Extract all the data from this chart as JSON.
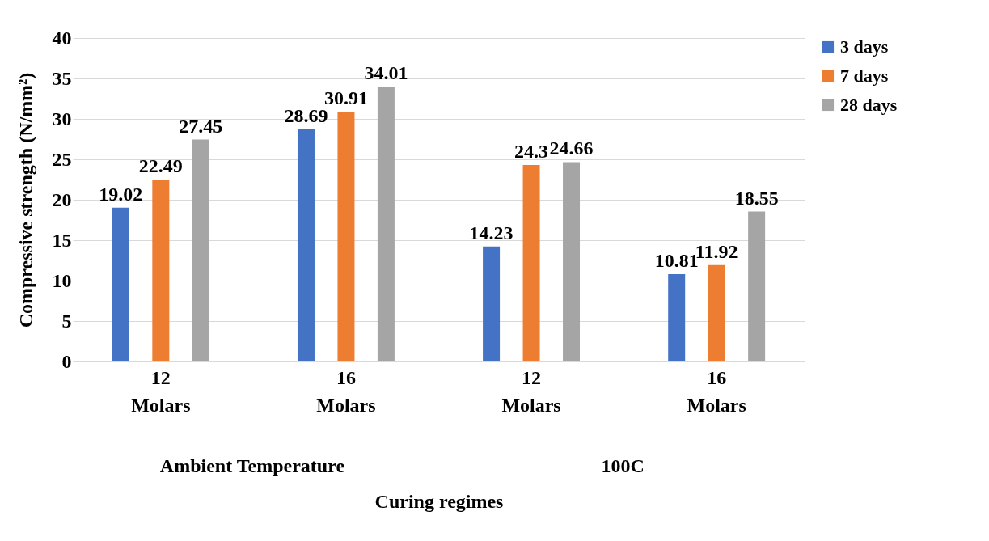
{
  "chart_data": {
    "type": "bar",
    "xlabel": "Curing regimes",
    "ylabel": "Compressive strength (N/mm²)",
    "categories": [
      "12 Molars",
      "16 Molars",
      "12 Molars",
      "16 Molars"
    ],
    "annotations": [
      "Ambient Temperature",
      "100C"
    ],
    "series": [
      {
        "name": "3 days",
        "color": "#4472c4",
        "values": [
          19.02,
          28.69,
          14.23,
          10.81
        ]
      },
      {
        "name": "7 days",
        "color": "#ed7d31",
        "values": [
          22.49,
          30.91,
          24.3,
          11.92
        ]
      },
      {
        "name": "28 days",
        "color": "#a5a5a5",
        "values": [
          27.45,
          34.01,
          24.66,
          18.55
        ]
      }
    ],
    "ylim": [
      0,
      40
    ],
    "yticks": [
      0,
      5,
      10,
      15,
      20,
      25,
      30,
      35,
      40
    ],
    "grid": "y",
    "legend": "right",
    "data_labels": true
  }
}
